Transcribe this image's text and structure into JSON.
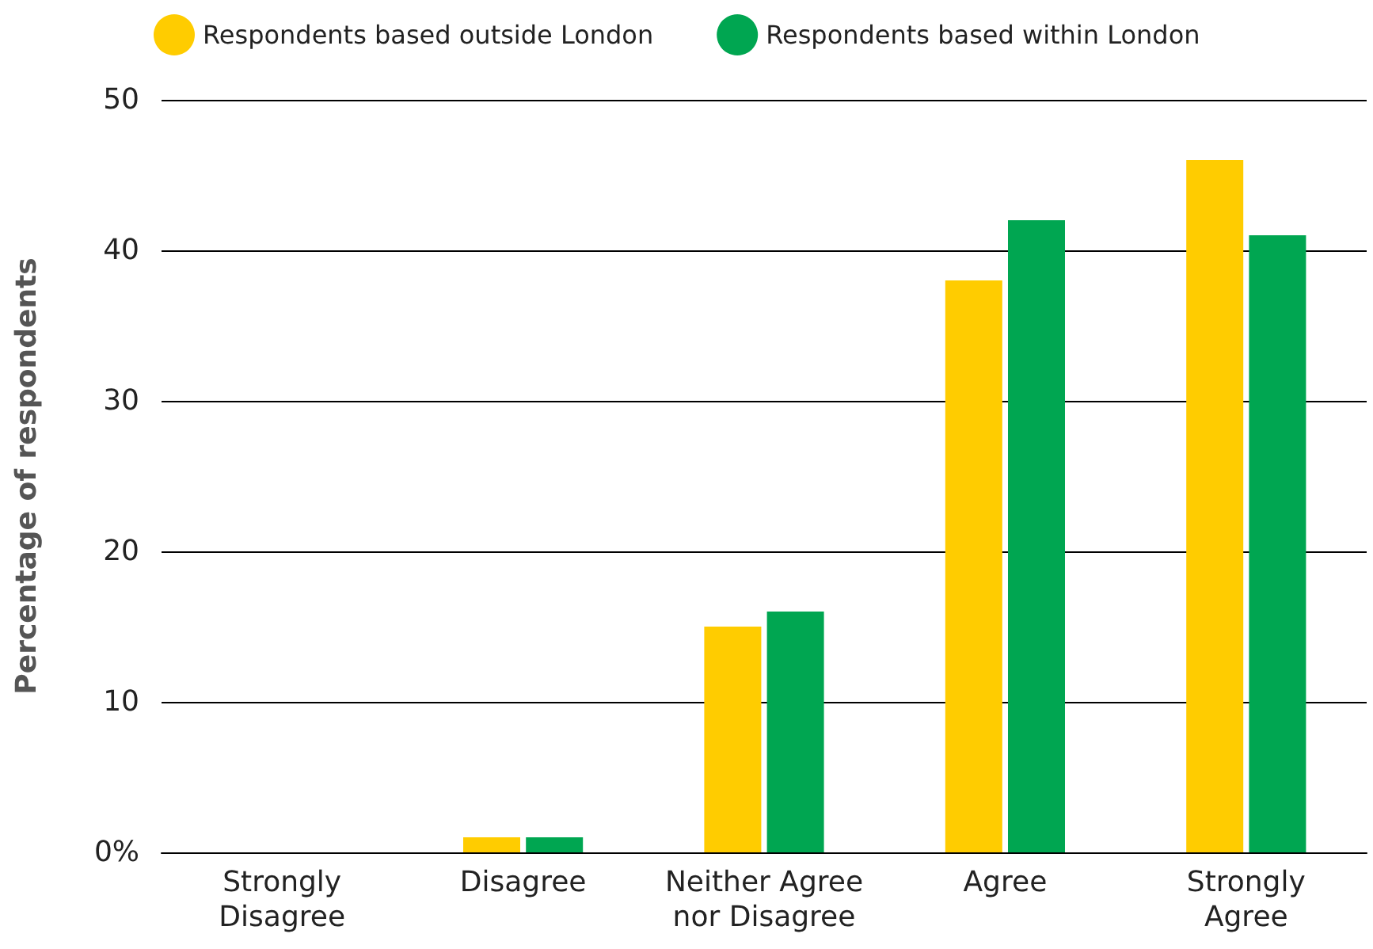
{
  "chart_data": {
    "type": "bar",
    "ylabel": "Percentage of respondents",
    "categories": [
      "Strongly\nDisagree",
      "Disagree",
      "Neither Agree\nnor Disagree",
      "Agree",
      "Strongly\nAgree"
    ],
    "series": [
      {
        "name": "Respondents based outside London",
        "color": "#ffcc00",
        "values": [
          0,
          1,
          15,
          38,
          46
        ]
      },
      {
        "name": "Respondents based within London",
        "color": "#00a651",
        "values": [
          0,
          1,
          16,
          42,
          41
        ]
      }
    ],
    "ylim": [
      0,
      50
    ],
    "yticks": [
      {
        "value": 0,
        "label": "0%"
      },
      10,
      20,
      30,
      40,
      50
    ],
    "grid": "y",
    "legend": "top left"
  }
}
